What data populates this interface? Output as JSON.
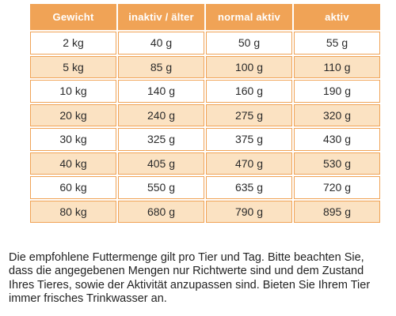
{
  "colors": {
    "header_bg": "#f0a356",
    "header_text": "#ffffff",
    "row_even_bg": "#fbe2c2",
    "row_odd_bg": "#ffffff",
    "border": "#f0a356"
  },
  "table": {
    "headers": [
      "Gewicht",
      "inaktiv / älter",
      "normal aktiv",
      "aktiv"
    ],
    "rows": [
      [
        "2 kg",
        "40 g",
        "50 g",
        "55 g"
      ],
      [
        "5 kg",
        "85 g",
        "100 g",
        "110 g"
      ],
      [
        "10 kg",
        "140 g",
        "160 g",
        "190 g"
      ],
      [
        "20 kg",
        "240 g",
        "275 g",
        "320 g"
      ],
      [
        "30 kg",
        "325 g",
        "375 g",
        "430 g"
      ],
      [
        "40 kg",
        "405 g",
        "470 g",
        "530 g"
      ],
      [
        "60 kg",
        "550 g",
        "635 g",
        "720 g"
      ],
      [
        "80 kg",
        "680 g",
        "790 g",
        "895 g"
      ]
    ]
  },
  "note": {
    "text": "Die empfohlene Futtermenge gilt pro Tier und Tag. Bitte beachten Sie, dass die angegebenen Mengen nur Richtwerte sind und dem Zustand Ihres Tieres, sowie der Aktivität anzupassen sind. Bieten Sie Ihrem Tier immer frisches Trinkwasser an."
  }
}
